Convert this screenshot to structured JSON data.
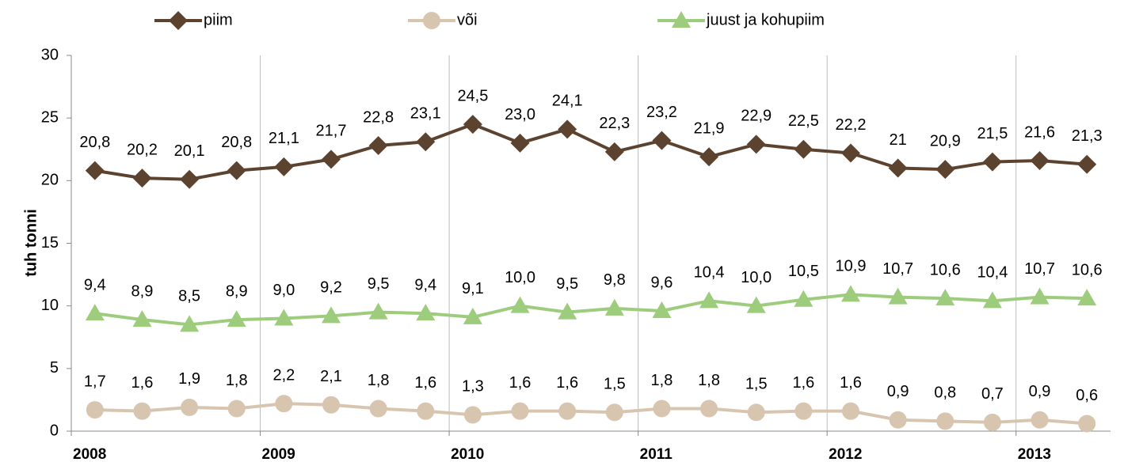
{
  "chart_data": {
    "type": "line",
    "categories": [
      "2008",
      null,
      null,
      null,
      "2009",
      null,
      null,
      null,
      "2010",
      null,
      null,
      null,
      "2011",
      null,
      null,
      null,
      "2012",
      null,
      null,
      null,
      "2013",
      null
    ],
    "y_label": "tuh tonni",
    "ylim": [
      0,
      30
    ],
    "yticks": [
      0,
      5,
      10,
      15,
      20,
      25,
      30
    ],
    "legend": "top",
    "series": [
      {
        "name": "piim",
        "color": "#5c4330",
        "marker": "diamond",
        "values": [
          20.8,
          20.2,
          20.1,
          20.8,
          21.1,
          21.7,
          22.8,
          23.1,
          24.5,
          23.0,
          24.1,
          22.3,
          23.2,
          21.9,
          22.9,
          22.5,
          22.2,
          21,
          20.9,
          21.5,
          21.6,
          21.3
        ],
        "value_labels": [
          "20,8",
          "20,2",
          "20,1",
          "20,8",
          "21,1",
          "21,7",
          "22,8",
          "23,1",
          "24,5",
          "23,0",
          "24,1",
          "22,3",
          "23,2",
          "21,9",
          "22,9",
          "22,5",
          "22,2",
          "21",
          "20,9",
          "21,5",
          "21,6",
          "21,3"
        ]
      },
      {
        "name": "või",
        "color": "#d8c5b0",
        "marker": "circle",
        "values": [
          1.7,
          1.6,
          1.9,
          1.8,
          2.2,
          2.1,
          1.8,
          1.6,
          1.3,
          1.6,
          1.6,
          1.5,
          1.8,
          1.8,
          1.5,
          1.6,
          1.6,
          0.9,
          0.8,
          0.7,
          0.9,
          0.6
        ],
        "value_labels": [
          "1,7",
          "1,6",
          "1,9",
          "1,8",
          "2,2",
          "2,1",
          "1,8",
          "1,6",
          "1,3",
          "1,6",
          "1,6",
          "1,5",
          "1,8",
          "1,8",
          "1,5",
          "1,6",
          "1,6",
          "0,9",
          "0,8",
          "0,7",
          "0,9",
          "0,6"
        ]
      },
      {
        "name": "juust ja kohupiim",
        "color": "#9ccc7c",
        "marker": "triangle",
        "values": [
          9.4,
          8.9,
          8.5,
          8.9,
          9.0,
          9.2,
          9.5,
          9.4,
          9.1,
          10.0,
          9.5,
          9.8,
          9.6,
          10.4,
          10.0,
          10.5,
          10.9,
          10.7,
          10.6,
          10.4,
          10.7,
          10.6
        ],
        "value_labels": [
          "9,4",
          "8,9",
          "8,5",
          "8,9",
          "9,0",
          "9,2",
          "9,5",
          "9,4",
          "9,1",
          "10,0",
          "9,5",
          "9,8",
          "9,6",
          "10,4",
          "10,0",
          "10,5",
          "10,9",
          "10,7",
          "10,6",
          "10,4",
          "10,7",
          "10,6"
        ]
      }
    ]
  }
}
